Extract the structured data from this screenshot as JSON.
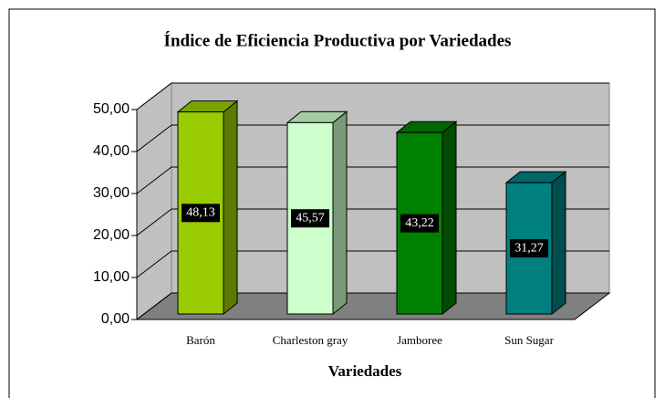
{
  "chart_data": {
    "type": "bar3d",
    "title": "Índice de Eficiencia Productiva por Variedades",
    "x_label": "Variedades",
    "categories": [
      "Barón",
      "Charleston gray",
      "Jamboree",
      "Sun Sugar"
    ],
    "values": [
      48.13,
      45.57,
      43.22,
      31.27
    ],
    "value_labels": [
      "48,13",
      "45,57",
      "43,22",
      "31,27"
    ],
    "colors": [
      "#99cc00",
      "#ccffcc",
      "#008000",
      "#008080"
    ],
    "ylim": [
      0,
      50
    ],
    "yticks": [
      {
        "value": 0,
        "label": "0,00"
      },
      {
        "value": 10,
        "label": "10,00"
      },
      {
        "value": 20,
        "label": "20,00"
      },
      {
        "value": 30,
        "label": "30,00"
      },
      {
        "value": 40,
        "label": "40,00"
      },
      {
        "value": 50,
        "label": "50,00"
      }
    ],
    "grid": true
  }
}
